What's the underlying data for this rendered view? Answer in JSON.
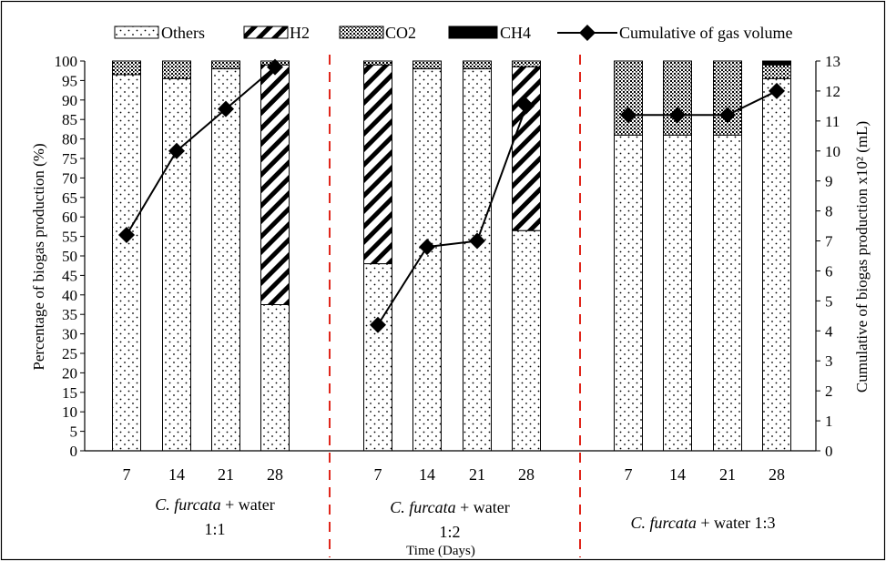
{
  "chart_data": {
    "type": "bar",
    "subtype": "stacked-bar-with-line",
    "title": "",
    "xlabel": "Time (Days)",
    "ylabel": "Percentage of biogas production (%)",
    "y2label": "Cumulative of biogas production x10² (mL)",
    "ylim": [
      0,
      100
    ],
    "y2lim": [
      0,
      13
    ],
    "yticks": [
      0,
      5,
      10,
      15,
      20,
      25,
      30,
      35,
      40,
      45,
      50,
      55,
      60,
      65,
      70,
      75,
      80,
      85,
      90,
      95,
      100
    ],
    "y2ticks": [
      0,
      1,
      2,
      3,
      4,
      5,
      6,
      7,
      8,
      9,
      10,
      11,
      12,
      13
    ],
    "grid": false,
    "legend_position": "top",
    "groups": [
      {
        "label_parts": [
          "C. furcata",
          " + water",
          "1:1"
        ],
        "days": [
          "7",
          "14",
          "21",
          "28"
        ]
      },
      {
        "label_parts": [
          "C. furcata",
          " + water",
          "1:2"
        ],
        "days": [
          "7",
          "14",
          "21",
          "28"
        ]
      },
      {
        "label_parts": [
          "C. furcata",
          " + water 1:3"
        ],
        "days": [
          "7",
          "14",
          "21",
          "28"
        ]
      }
    ],
    "series": [
      {
        "name": "Others",
        "pattern": "dots",
        "values": [
          96.5,
          95.5,
          98,
          37.5,
          48,
          98,
          98,
          56.5,
          81,
          81,
          81,
          95.5
        ]
      },
      {
        "name": "H2",
        "pattern": "diagonal-stripes",
        "values": [
          0,
          0,
          0,
          61.5,
          51,
          0,
          0,
          42,
          0,
          0,
          0,
          0
        ]
      },
      {
        "name": "CO2",
        "pattern": "dense-dots",
        "values": [
          3.5,
          4.5,
          2,
          1,
          1,
          2,
          2,
          1.5,
          19,
          19,
          19,
          3.5
        ]
      },
      {
        "name": "CH4",
        "pattern": "solid-black",
        "values": [
          0,
          0,
          0,
          0,
          0,
          0,
          0,
          0,
          0,
          0,
          0,
          1
        ]
      }
    ],
    "line_series": {
      "name": "Cumulative of gas volume",
      "axis": "right",
      "marker": "diamond",
      "values": [
        7.2,
        10,
        11.4,
        12.8,
        4.2,
        6.8,
        7,
        11.5,
        11.2,
        11.2,
        11.2,
        12
      ]
    },
    "separator_color": "#e0261b"
  }
}
